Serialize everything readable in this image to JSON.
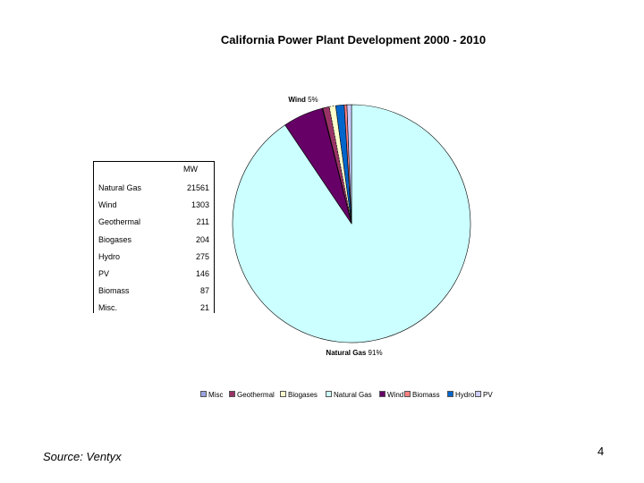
{
  "chart_data": {
    "type": "pie",
    "title": "California Power Plant Development 2000 - 2010",
    "slices": [
      {
        "name": "Misc.",
        "value": 21,
        "color": "#99a3e0"
      },
      {
        "name": "Geothermal",
        "value": 211,
        "color": "#993366"
      },
      {
        "name": "Biogases",
        "value": 204,
        "color": "#ffffcc"
      },
      {
        "name": "Natural Gas",
        "value": 21561,
        "color": "#ccffff"
      },
      {
        "name": "Wind",
        "value": 1303,
        "color": "#660066"
      },
      {
        "name": "Biomass",
        "value": 87,
        "color": "#ff8080"
      },
      {
        "name": "Hydro",
        "value": 275,
        "color": "#0066cc"
      },
      {
        "name": "PV",
        "value": 146,
        "color": "#ccccff"
      }
    ],
    "data_labels": [
      {
        "name": "Wind",
        "percent": "5%"
      },
      {
        "name": "Natural Gas",
        "percent": "91%"
      }
    ],
    "legend": {
      "position": "bottom",
      "items": [
        "Misc",
        "Geothermal",
        "Biogases",
        "Natural Gas",
        "Wind",
        "Biomass",
        "Hydro",
        "PV"
      ]
    }
  },
  "table": {
    "header": "MW",
    "rows": [
      {
        "label": "Natural Gas",
        "value": "21561"
      },
      {
        "label": "Wind",
        "value": "1303"
      },
      {
        "label": "Geothermal",
        "value": "211"
      },
      {
        "label": "Biogases",
        "value": "204"
      },
      {
        "label": "Hydro",
        "value": "275"
      },
      {
        "label": "PV",
        "value": "146"
      },
      {
        "label": "Biomass",
        "value": "87"
      },
      {
        "label": "Misc.",
        "value": "21"
      }
    ]
  },
  "source_note": "Source: Ventyx",
  "slide_number": "4"
}
